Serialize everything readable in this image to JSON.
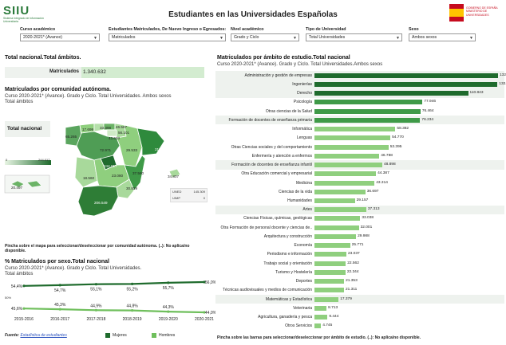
{
  "header": {
    "logo_text": "SIIU",
    "logo_subtitle": "Sistema Integrado de Información Universitaria",
    "title": "Estudiantes en las Universidades Españolas",
    "gov_text": "GOBIERNO DE ESPAÑA MINISTERIO DE UNIVERSIDADES"
  },
  "filters": [
    {
      "label": "Curso académico",
      "value": "2020-2021* (Avance)"
    },
    {
      "label": "Estudiantes Matriculados, De Nuevo Ingreso o Egresados:",
      "value": "Matriculados"
    },
    {
      "label": "Nivel académico",
      "value": "Grado y Ciclo"
    },
    {
      "label": "Tipo de Universidad",
      "value": "Total Universidades"
    },
    {
      "label": "Sexo",
      "value": "Ambos sexos"
    }
  ],
  "total": {
    "title": "Total nacional.Total ámbitos.",
    "label": "Matriculados",
    "value": "1.340.632"
  },
  "map_section": {
    "title": "Matriculados por comunidad autónoma.",
    "subtitle1": "Curso 2020-2021* (Avance). Grado y Ciclo. Total Universidades. Ambos sexos",
    "subtitle2": "Total ámbitos",
    "total_label": "Total nacional",
    "legend_min": "0",
    "legend_max": "244.017",
    "region_values": [
      "17.699",
      "65.265",
      "33.398",
      "46.567",
      "56.101",
      "72.971",
      "43.633",
      "29.533",
      "219.448",
      "244.017",
      "18.560",
      "23.080",
      "30.829",
      "37.560",
      "206.549",
      "34.807",
      "20.497"
    ],
    "uned_label": "UNED",
    "uned_value": "145.309",
    "uimp_label": "UIMP",
    "uimp_value": "0",
    "note": "Pincha sobre el mapa para seleccionar/deseleccionar por comunidad autónoma. (..): No aplica/no disponible."
  },
  "sex_section": {
    "title": "% Matriculados por sexo.Total nacional",
    "subtitle1": "Curso 2020-2021* (Avance). Grado y Ciclo. Total Universidades.",
    "subtitle2": "Total ámbitos",
    "axis_tick": "50%",
    "legend_women": "Mujeres",
    "legend_men": "Hombres",
    "source_label": "Fuente:",
    "source_link": "Estadística de estudiantes"
  },
  "field_section": {
    "title": "Matriculados por ámbito de estudio.Total nacional",
    "subtitle": "Curso 2020-2021* (Avance). Grado y Ciclo. Total Universidades.Ambos sexos",
    "note": "Pincha sobre las barras para seleccionar/deseleccionar por ámbito de estudio. (..): No aplica/no disponible."
  },
  "colors": {
    "dark_green": "#1f6b2d",
    "mid_green": "#3f9a48",
    "light_green": "#8fcf7e",
    "pale_green": "#d3ecd0"
  },
  "chart_data": [
    {
      "type": "bar",
      "title": "Matriculados por ámbito de estudio.Total nacional",
      "categories": [
        "Administración y gestión de empresas",
        "Ingenierías",
        "Derecho",
        "Psicología",
        "Otras ciencias de la Salud",
        "Formación de docentes de enseñanza primaria",
        "Informática",
        "Lenguas",
        "Otras Ciencias sociales y del comportamiento",
        "Enfermería y atención a enfermos",
        "Formación de docentes de enseñanza infantil",
        "Otra Educación comercial y empresarial",
        "Medicina",
        "Ciencias de la vida",
        "Humanidades",
        "Artes",
        "Ciencias Físicas, químicas, geológicas",
        "Otra Formación de personal docente y ciencias de..",
        "Arquitectura y construcción",
        "Economía",
        "Periodismo e información",
        "Trabajo social y orientación",
        "Turismo y Hostelería",
        "Deportes",
        "Técnicas audiovisuales y medios de comunicación",
        "Matemáticas y Estadística",
        "Veterinaria",
        "Agricultura, ganadería y pesca",
        "Otros Servicios"
      ],
      "values": [
        132408,
        132007,
        110843,
        77946,
        76464,
        76234,
        58382,
        54770,
        53395,
        46788,
        48898,
        44387,
        43314,
        36697,
        29157,
        37313,
        33038,
        32001,
        29988,
        25771,
        23037,
        22562,
        22344,
        21353,
        21311,
        17379,
        8713,
        9444,
        4745
      ],
      "value_labels": [
        "132.408",
        "132.007",
        "110.843",
        "77.946",
        "76.464",
        "76.234",
        "58.382",
        "54.770",
        "53.395",
        "46.788",
        "48.898",
        "44.387",
        "43.314",
        "36.697",
        "29.157",
        "37.313",
        "33.038",
        "32.001",
        "29.988",
        "25.771",
        "23.037",
        "22.562",
        "22.344",
        "21.353",
        "21.311",
        "17.379",
        "8.713",
        "9.444",
        "4.745"
      ]
    },
    {
      "type": "line",
      "title": "% Matriculados por sexo.Total nacional",
      "categories": [
        "2015-2016",
        "2016-2017",
        "2017-2018",
        "2018-2019",
        "2019-2020",
        "2020-2021"
      ],
      "series": [
        {
          "name": "Mujeres",
          "values": [
            54.4,
            54.7,
            55.1,
            55.2,
            55.7,
            56.0
          ],
          "labels": [
            "54,4%",
            "54,7%",
            "55,1%",
            "55,2%",
            "55,7%",
            "56,0%"
          ]
        },
        {
          "name": "Hombres",
          "values": [
            45.6,
            45.3,
            44.9,
            44.8,
            44.3,
            44.0
          ],
          "labels": [
            "45,6%",
            "45,3%",
            "44,9%",
            "44,8%",
            "44,3%",
            "44,0%"
          ]
        }
      ]
    }
  ]
}
